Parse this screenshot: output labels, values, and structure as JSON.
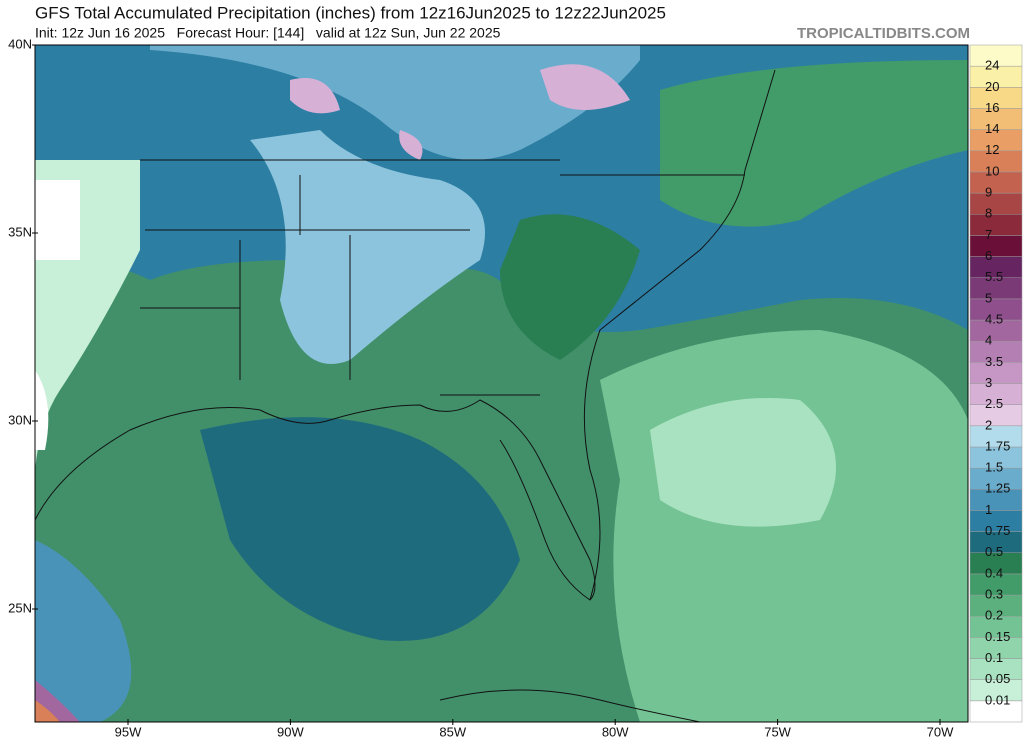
{
  "header": {
    "title": "GFS Total Accumulated Precipitation (inches) from 12z16Jun2025 to 12z22Jun2025",
    "subtitle": "Init: 12z Jun 16 2025   Forecast Hour: [144]   valid at 12z Sun, Jun 22 2025",
    "site": "TROPICALTIDBITS.COM"
  },
  "map": {
    "lat_labels": [
      "40N",
      "35N",
      "30N",
      "25N"
    ],
    "lon_labels": [
      "95W",
      "90W",
      "85W",
      "80W",
      "75W",
      "70W"
    ]
  },
  "colorbar": {
    "levels": [
      0.01,
      0.05,
      0.1,
      0.15,
      0.2,
      0.3,
      0.4,
      0.5,
      0.75,
      1,
      1.25,
      1.5,
      1.75,
      2,
      2.5,
      3,
      3.5,
      4,
      4.5,
      5,
      5.5,
      6,
      7,
      8,
      9,
      10,
      12,
      14,
      16,
      20,
      24
    ],
    "colors": [
      "#ffffff",
      "#c8efd8",
      "#a9e2c0",
      "#8fd4aa",
      "#74c394",
      "#5bb07e",
      "#419c69",
      "#2a7f52",
      "#1f6b7e",
      "#2c7ea3",
      "#4a93b8",
      "#6aaccc",
      "#8cc4dd",
      "#b2dceb",
      "#e6cbe5",
      "#d7b0d6",
      "#c697c5",
      "#b47fb3",
      "#a2679f",
      "#8e4f8c",
      "#7a3a76",
      "#662460",
      "#6a0f38",
      "#8a2a3a",
      "#a84646",
      "#c46250",
      "#d98058",
      "#e89e64",
      "#f2bd74",
      "#f8d988",
      "#fbf0a8",
      "#fdfbc8"
    ]
  }
}
